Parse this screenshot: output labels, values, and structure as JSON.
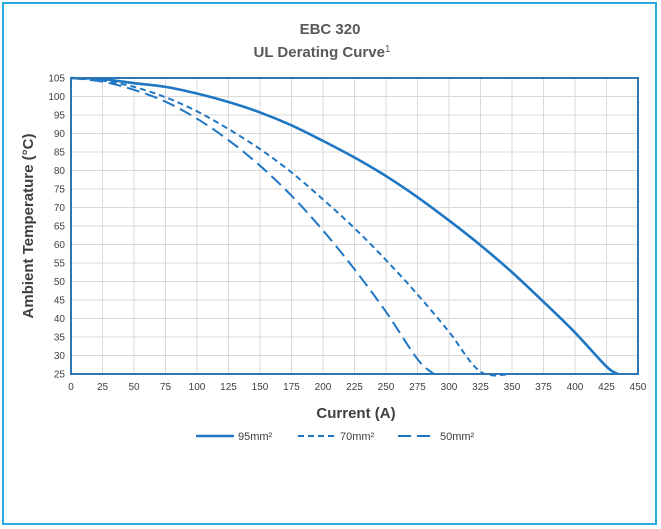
{
  "chart_data": {
    "type": "line",
    "title": "EBC 320",
    "subtitle": "UL Derating Curve",
    "subtitle_superscript": "1",
    "xlabel": "Current (A)",
    "ylabel": "Ambient Temperature (°C)",
    "xlim": [
      0,
      450
    ],
    "ylim": [
      25,
      105
    ],
    "x_ticks": [
      0,
      25,
      50,
      75,
      100,
      125,
      150,
      175,
      200,
      225,
      250,
      275,
      300,
      325,
      350,
      375,
      400,
      425,
      450
    ],
    "y_ticks": [
      25,
      30,
      35,
      40,
      45,
      50,
      55,
      60,
      65,
      70,
      75,
      80,
      85,
      90,
      95,
      100,
      105
    ],
    "grid": true,
    "legend_position": "bottom",
    "color": "#1f77c4",
    "series": [
      {
        "name": "95mm²",
        "style": "solid",
        "x": [
          0,
          25,
          50,
          75,
          100,
          125,
          150,
          175,
          200,
          225,
          250,
          275,
          300,
          325,
          350,
          375,
          400,
          425,
          434
        ],
        "y": [
          105,
          104.7,
          103.6,
          102.6,
          100.8,
          98.5,
          95.7,
          92.2,
          88.0,
          83.5,
          78.5,
          72.8,
          66.5,
          59.8,
          52.5,
          44.5,
          36.2,
          27.0,
          25
        ]
      },
      {
        "name": "70mm²",
        "style": "dashed-short",
        "x": [
          0,
          25,
          50,
          75,
          100,
          125,
          150,
          175,
          200,
          225,
          250,
          275,
          300,
          325,
          350,
          355
        ],
        "y": [
          105,
          104.3,
          102.6,
          99.8,
          96.0,
          91.2,
          85.8,
          79.5,
          72.2,
          64.4,
          55.8,
          46.5,
          36.4,
          25.6,
          25,
          25
        ]
      },
      {
        "name": "50mm²",
        "style": "dashed-long",
        "x": [
          0,
          25,
          50,
          75,
          100,
          125,
          150,
          175,
          200,
          225,
          250,
          275,
          288
        ],
        "y": [
          105,
          104.0,
          101.8,
          98.6,
          94.0,
          88.2,
          81.3,
          73.2,
          63.8,
          53.3,
          41.8,
          29.0,
          25
        ]
      }
    ]
  }
}
